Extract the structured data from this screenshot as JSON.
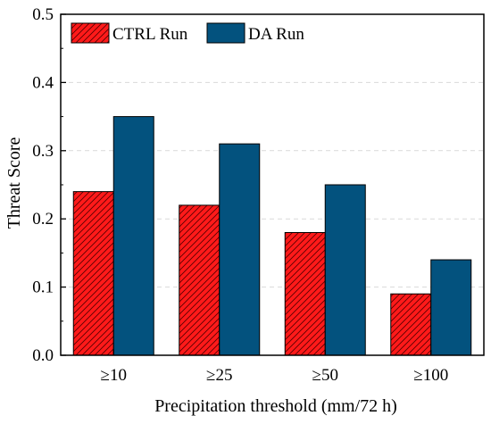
{
  "chart_data": {
    "type": "bar",
    "categories": [
      "≥10",
      "≥25",
      "≥50",
      "≥100"
    ],
    "series": [
      {
        "name": "CTRL Run",
        "values": [
          0.24,
          0.22,
          0.18,
          0.09
        ],
        "color": "#ff1a1a",
        "pattern": "diagonal-hatch"
      },
      {
        "name": "DA Run",
        "values": [
          0.35,
          0.31,
          0.25,
          0.14
        ],
        "color": "#03527e",
        "pattern": "solid"
      }
    ],
    "xlabel": "Precipitation threshold (mm/72 h)",
    "ylabel": "Threat Score",
    "ylim": [
      0,
      0.5
    ],
    "yticks": [
      "0.0",
      "0.1",
      "0.2",
      "0.3",
      "0.4",
      "0.5"
    ],
    "grid": true,
    "legend_position": "top-left"
  }
}
